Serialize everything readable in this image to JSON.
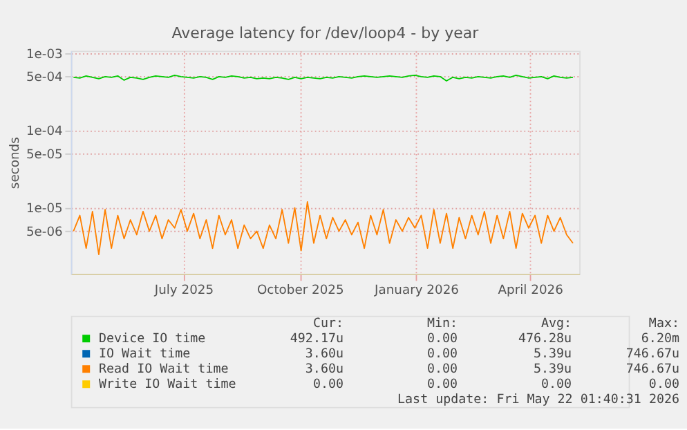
{
  "chart_data": {
    "type": "line",
    "title": "Average latency for /dev/loop4 - by year",
    "ylabel": "seconds",
    "log": "y",
    "grid": true,
    "legend": "bottom",
    "marker": "none",
    "line_style": "solid",
    "ylim": [
      1.4e-06,
      0.00108
    ],
    "yticks": [
      {
        "value": 0.001,
        "label": "1e-03"
      },
      {
        "value": 0.0005,
        "label": "5e-04"
      },
      {
        "value": 0.0001,
        "label": "1e-04"
      },
      {
        "value": 5e-05,
        "label": "5e-05"
      },
      {
        "value": 1e-05,
        "label": "1e-05"
      },
      {
        "value": 5e-06,
        "label": "5e-06"
      }
    ],
    "xlim": [
      "2025-04-03",
      "2026-05-10"
    ],
    "xticks": [
      {
        "value": "2025-07-01",
        "label": "July 2025"
      },
      {
        "value": "2025-10-01",
        "label": "October 2025"
      },
      {
        "value": "2026-01-01",
        "label": "January 2026"
      },
      {
        "value": "2026-04-01",
        "label": "April 2026"
      }
    ],
    "x": [
      "2025-04-05",
      "2025-04-10",
      "2025-04-15",
      "2025-04-20",
      "2025-04-25",
      "2025-04-30",
      "2025-05-05",
      "2025-05-10",
      "2025-05-15",
      "2025-05-20",
      "2025-05-25",
      "2025-05-30",
      "2025-06-04",
      "2025-06-09",
      "2025-06-14",
      "2025-06-19",
      "2025-06-24",
      "2025-06-29",
      "2025-07-04",
      "2025-07-09",
      "2025-07-14",
      "2025-07-19",
      "2025-07-24",
      "2025-07-29",
      "2025-08-03",
      "2025-08-08",
      "2025-08-13",
      "2025-08-18",
      "2025-08-23",
      "2025-08-28",
      "2025-09-02",
      "2025-09-07",
      "2025-09-12",
      "2025-09-17",
      "2025-09-22",
      "2025-09-27",
      "2025-10-02",
      "2025-10-07",
      "2025-10-12",
      "2025-10-17",
      "2025-10-22",
      "2025-10-27",
      "2025-11-01",
      "2025-11-06",
      "2025-11-11",
      "2025-11-16",
      "2025-11-21",
      "2025-11-26",
      "2025-12-01",
      "2025-12-06",
      "2025-12-11",
      "2025-12-16",
      "2025-12-21",
      "2025-12-26",
      "2025-12-31",
      "2026-01-05",
      "2026-01-10",
      "2026-01-15",
      "2026-01-20",
      "2026-01-25",
      "2026-01-30",
      "2026-02-04",
      "2026-02-09",
      "2026-02-14",
      "2026-02-19",
      "2026-02-24",
      "2026-03-01",
      "2026-03-06",
      "2026-03-11",
      "2026-03-16",
      "2026-03-21",
      "2026-03-26",
      "2026-03-31",
      "2026-04-05",
      "2026-04-10",
      "2026-04-15",
      "2026-04-20",
      "2026-04-25",
      "2026-04-30",
      "2026-05-05"
    ],
    "series": [
      {
        "name": "Device IO time",
        "color": "#00cc00",
        "values": [
          0.00049,
          0.00048,
          0.00051,
          0.00049,
          0.00047,
          0.0005,
          0.00049,
          0.00051,
          0.00045,
          0.00049,
          0.00048,
          0.00046,
          0.00049,
          0.00051,
          0.0005,
          0.00049,
          0.00052,
          0.0005,
          0.00049,
          0.00048,
          0.0005,
          0.00049,
          0.00046,
          0.0005,
          0.00049,
          0.00051,
          0.0005,
          0.00048,
          0.00049,
          0.00047,
          0.00048,
          0.00047,
          0.00049,
          0.00048,
          0.00046,
          0.00049,
          0.00047,
          0.00049,
          0.00048,
          0.00047,
          0.00049,
          0.00048,
          0.0005,
          0.00049,
          0.00048,
          0.0005,
          0.00051,
          0.0005,
          0.00049,
          0.0005,
          0.00051,
          0.0005,
          0.00049,
          0.00051,
          0.00052,
          0.0005,
          0.00049,
          0.00051,
          0.0005,
          0.00044,
          0.00049,
          0.00047,
          0.00049,
          0.00048,
          0.0005,
          0.00049,
          0.00048,
          0.0005,
          0.00051,
          0.00049,
          0.00052,
          0.0005,
          0.00048,
          0.00049,
          0.0005,
          0.00047,
          0.00051,
          0.00049,
          0.00048,
          0.00049
        ]
      },
      {
        "name": "IO Wait time",
        "color": "#0066b3",
        "values": [
          null,
          null,
          null,
          null,
          null,
          null,
          null,
          null,
          null,
          null,
          null,
          null,
          null,
          null,
          null,
          null,
          null,
          null,
          null,
          null,
          null,
          null,
          null,
          null,
          null,
          null,
          null,
          null,
          null,
          null,
          null,
          null,
          null,
          null,
          null,
          null,
          null,
          null,
          null,
          null,
          null,
          null,
          null,
          null,
          null,
          null,
          null,
          null,
          null,
          null,
          null,
          null,
          null,
          null,
          null,
          null,
          null,
          null,
          null,
          null,
          null,
          null,
          null,
          null,
          null,
          null,
          null,
          null,
          null,
          null,
          null,
          null,
          null,
          null,
          null,
          null,
          null,
          null,
          null,
          null
        ]
      },
      {
        "name": "Read IO Wait time",
        "color": "#ff8000",
        "values": [
          5e-06,
          8e-06,
          3e-06,
          9e-06,
          2.5e-06,
          9.5e-06,
          3e-06,
          8e-06,
          4e-06,
          7e-06,
          4.5e-06,
          9e-06,
          5e-06,
          8e-06,
          4e-06,
          7e-06,
          5.5e-06,
          9.5e-06,
          5e-06,
          8.5e-06,
          4e-06,
          7e-06,
          3e-06,
          8e-06,
          4.5e-06,
          7e-06,
          3e-06,
          6e-06,
          4e-06,
          5e-06,
          3e-06,
          6e-06,
          4e-06,
          9.5e-06,
          3.5e-06,
          1e-05,
          2.8e-06,
          1.2e-05,
          3.5e-06,
          8e-06,
          4e-06,
          7.5e-06,
          5e-06,
          7e-06,
          4.5e-06,
          6.5e-06,
          3e-06,
          8e-06,
          4.5e-06,
          9.5e-06,
          3.5e-06,
          7e-06,
          5e-06,
          7.5e-06,
          5.5e-06,
          8e-06,
          3e-06,
          9.5e-06,
          3.5e-06,
          8.5e-06,
          3e-06,
          7.5e-06,
          4e-06,
          8e-06,
          4.5e-06,
          9e-06,
          3.5e-06,
          8e-06,
          4e-06,
          9e-06,
          3e-06,
          8.5e-06,
          5.5e-06,
          8e-06,
          3.5e-06,
          8e-06,
          5e-06,
          7.5e-06,
          4.5e-06,
          3.5e-06
        ]
      },
      {
        "name": "Write IO Wait time",
        "color": "#ffcc00",
        "values": [
          null,
          null,
          null,
          null,
          null,
          null,
          null,
          null,
          null,
          null,
          null,
          null,
          null,
          null,
          null,
          null,
          null,
          null,
          null,
          null,
          null,
          null,
          null,
          null,
          null,
          null,
          null,
          null,
          null,
          null,
          null,
          null,
          null,
          null,
          null,
          null,
          null,
          null,
          null,
          null,
          null,
          null,
          null,
          null,
          null,
          null,
          null,
          null,
          null,
          null,
          null,
          null,
          null,
          null,
          null,
          null,
          null,
          null,
          null,
          null,
          null,
          null,
          null,
          null,
          null,
          null,
          null,
          null,
          null,
          null,
          null,
          null,
          null,
          null,
          null,
          null,
          null,
          null,
          null,
          null
        ]
      }
    ],
    "annotations": [
      "Cur:",
      "Min:",
      "Avg:",
      "Max:",
      "492.17u",
      "0.00",
      "476.28u",
      "6.20m",
      "3.60u",
      "0.00",
      "5.39u",
      "746.67u",
      "3.60u",
      "0.00",
      "5.39u",
      "746.67u",
      "0.00",
      "0.00",
      "0.00",
      "0.00",
      "Last update: Fri May 22 01:40:31 2026"
    ]
  }
}
